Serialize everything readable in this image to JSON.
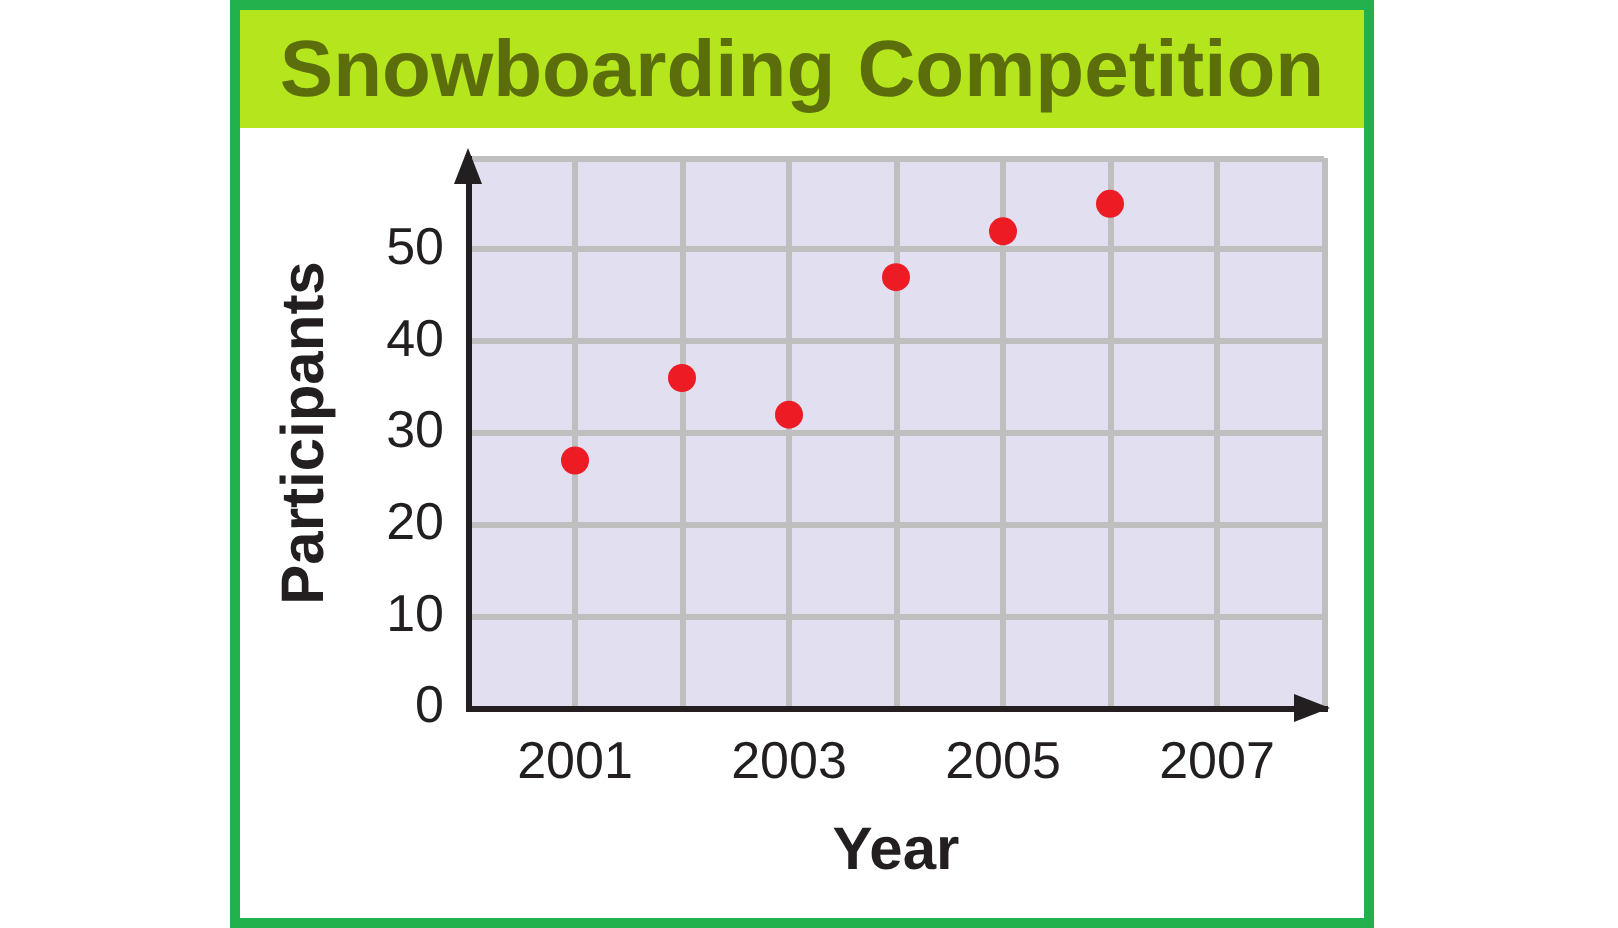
{
  "chart_data": {
    "type": "scatter",
    "title": "Snowboarding Competition",
    "xlabel": "Year",
    "ylabel": "Participants",
    "x": [
      2001,
      2002,
      2003,
      2004,
      2005,
      2006
    ],
    "values": [
      27,
      36,
      32,
      47,
      52,
      55
    ],
    "color": "#ed1c24",
    "xlim": [
      2000,
      2008
    ],
    "xticks": [
      2001,
      {
        "value": 2002,
        "label": null
      },
      2003,
      {
        "value": 2004,
        "label": null
      },
      2005,
      {
        "value": 2006,
        "label": null
      },
      2007,
      {
        "value": 2008,
        "label": null
      }
    ],
    "ylim": [
      0,
      60
    ],
    "yticks": [
      0,
      10,
      20,
      30,
      40,
      50,
      {
        "value": 60,
        "label": null
      }
    ],
    "grid": true,
    "marker": "circle"
  }
}
